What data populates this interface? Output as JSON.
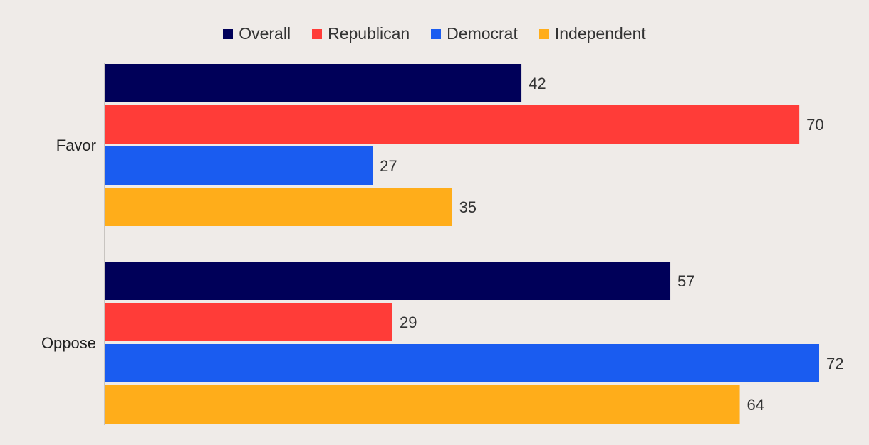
{
  "chart_data": {
    "type": "bar",
    "orientation": "horizontal",
    "categories": [
      "Favor",
      "Oppose"
    ],
    "series": [
      {
        "name": "Overall",
        "color": "#000059",
        "values": [
          42,
          57
        ]
      },
      {
        "name": "Republican",
        "color": "#ff3c38",
        "values": [
          70,
          29
        ]
      },
      {
        "name": "Democrat",
        "color": "#1a5cf0",
        "values": [
          27,
          72
        ]
      },
      {
        "name": "Independent",
        "color": "#ffad1a",
        "values": [
          35,
          64
        ]
      }
    ],
    "xlim": [
      0,
      72
    ],
    "grid": false,
    "legend_position": "top-center",
    "data_labels": true
  }
}
